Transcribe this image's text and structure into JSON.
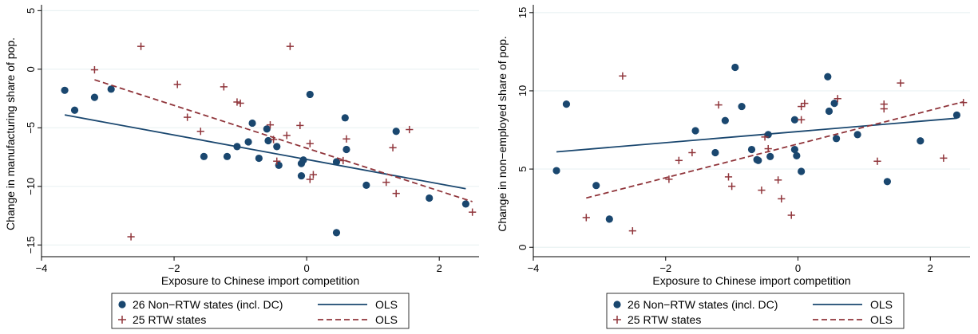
{
  "colors": {
    "non_rtw": "#1a476f",
    "rtw": "#90353b",
    "grid": "#eaf2f3",
    "axis": "#000000"
  },
  "chart_data": [
    {
      "type": "scatter",
      "title": "",
      "xlabel": "Exposure to Chinese import competition",
      "ylabel": "Change in manufacturing share of pop.",
      "xlim": [
        -4.0,
        2.6
      ],
      "ylim": [
        -16.0,
        5.5
      ],
      "xticks": [
        -4,
        -2,
        0,
        2
      ],
      "xtick_labels": [
        "−4",
        "−2",
        "0",
        "2"
      ],
      "yticks": [
        -15,
        -10,
        -5,
        0,
        5
      ],
      "ytick_labels": [
        "−15",
        "−10",
        "−5",
        "0",
        "5"
      ],
      "grid": true,
      "legend_position": "bottom",
      "series": [
        {
          "name": "26 Non−RTW states (incl. DC)",
          "marker": "circle",
          "color": "#1a476f",
          "points": [
            [
              -3.65,
              -1.8
            ],
            [
              -3.5,
              -3.5
            ],
            [
              -3.2,
              -2.4
            ],
            [
              -2.95,
              -1.7
            ],
            [
              -1.55,
              -7.45
            ],
            [
              -1.2,
              -7.45
            ],
            [
              -1.05,
              -6.6
            ],
            [
              -0.88,
              -6.2
            ],
            [
              -0.82,
              -4.6
            ],
            [
              -0.72,
              -7.6
            ],
            [
              -0.6,
              -5.1
            ],
            [
              -0.58,
              -6.1
            ],
            [
              -0.45,
              -6.6
            ],
            [
              -0.42,
              -8.2
            ],
            [
              -0.08,
              -8.05
            ],
            [
              -0.05,
              -7.75
            ],
            [
              -0.08,
              -9.1
            ],
            [
              0.05,
              -2.15
            ],
            [
              0.45,
              -7.9
            ],
            [
              0.45,
              -13.95
            ],
            [
              0.58,
              -4.15
            ],
            [
              0.6,
              -6.85
            ],
            [
              0.9,
              -9.9
            ],
            [
              1.35,
              -5.3
            ],
            [
              1.85,
              -11.0
            ],
            [
              2.4,
              -11.5
            ]
          ]
        },
        {
          "name": "25 RTW states",
          "marker": "plus",
          "color": "#90353b",
          "points": [
            [
              -3.2,
              -0.05
            ],
            [
              -2.5,
              1.95
            ],
            [
              -2.65,
              -14.3
            ],
            [
              -1.95,
              -1.3
            ],
            [
              -1.8,
              -4.1
            ],
            [
              -1.6,
              -5.3
            ],
            [
              -1.25,
              -1.5
            ],
            [
              -1.05,
              -2.8
            ],
            [
              -1.0,
              -2.9
            ],
            [
              -0.55,
              -4.75
            ],
            [
              -0.5,
              -6.0
            ],
            [
              -0.45,
              -7.85
            ],
            [
              -0.3,
              -5.65
            ],
            [
              -0.25,
              1.95
            ],
            [
              -0.1,
              -4.8
            ],
            [
              0.05,
              -6.35
            ],
            [
              0.05,
              -9.4
            ],
            [
              0.1,
              -9.0
            ],
            [
              0.55,
              -7.8
            ],
            [
              0.6,
              -5.95
            ],
            [
              1.2,
              -9.65
            ],
            [
              1.3,
              -6.7
            ],
            [
              1.35,
              -10.6
            ],
            [
              1.55,
              -5.15
            ],
            [
              2.5,
              -12.2
            ]
          ]
        },
        {
          "name": "OLS",
          "type": "line",
          "style": "solid",
          "color": "#1a476f",
          "points": [
            [
              -3.65,
              -3.9
            ],
            [
              2.4,
              -10.2
            ]
          ]
        },
        {
          "name": "OLS",
          "type": "line",
          "style": "dashed",
          "color": "#90353b",
          "points": [
            [
              -3.2,
              -0.9
            ],
            [
              2.5,
              -11.3
            ]
          ]
        }
      ]
    },
    {
      "type": "scatter",
      "title": "",
      "xlabel": "Exposure to Chinese import competition",
      "ylabel": "Change in non−employed share of pop.",
      "xlim": [
        -4.0,
        2.6
      ],
      "ylim": [
        -0.6,
        15.5
      ],
      "xticks": [
        -4,
        -2,
        0,
        2
      ],
      "xtick_labels": [
        "−4",
        "−2",
        "0",
        "2"
      ],
      "yticks": [
        0,
        5,
        10,
        15
      ],
      "ytick_labels": [
        "0",
        "5",
        "10",
        "15"
      ],
      "grid": true,
      "legend_position": "bottom",
      "series": [
        {
          "name": "26 Non−RTW states (incl. DC)",
          "marker": "circle",
          "color": "#1a476f",
          "points": [
            [
              -3.65,
              4.9
            ],
            [
              -3.5,
              9.15
            ],
            [
              -3.05,
              3.95
            ],
            [
              -2.85,
              1.8
            ],
            [
              -1.55,
              7.45
            ],
            [
              -1.25,
              6.05
            ],
            [
              -1.1,
              8.1
            ],
            [
              -0.95,
              11.5
            ],
            [
              -0.85,
              9.0
            ],
            [
              -0.7,
              6.25
            ],
            [
              -0.62,
              5.6
            ],
            [
              -0.6,
              5.55
            ],
            [
              -0.45,
              7.2
            ],
            [
              -0.42,
              5.8
            ],
            [
              -0.05,
              8.15
            ],
            [
              -0.05,
              6.25
            ],
            [
              -0.02,
              5.85
            ],
            [
              0.05,
              4.85
            ],
            [
              0.45,
              10.9
            ],
            [
              0.47,
              8.7
            ],
            [
              0.55,
              9.2
            ],
            [
              0.58,
              6.95
            ],
            [
              0.9,
              7.2
            ],
            [
              1.35,
              4.2
            ],
            [
              1.85,
              6.8
            ],
            [
              2.4,
              8.45
            ]
          ]
        },
        {
          "name": "25 RTW states",
          "marker": "plus",
          "color": "#90353b",
          "points": [
            [
              -3.2,
              1.9
            ],
            [
              -2.65,
              10.95
            ],
            [
              -2.5,
              1.05
            ],
            [
              -1.95,
              4.35
            ],
            [
              -1.8,
              5.55
            ],
            [
              -1.6,
              6.05
            ],
            [
              -1.2,
              9.1
            ],
            [
              -1.05,
              4.5
            ],
            [
              -1.0,
              3.9
            ],
            [
              -0.55,
              3.65
            ],
            [
              -0.5,
              7.05
            ],
            [
              -0.45,
              6.3
            ],
            [
              -0.3,
              4.3
            ],
            [
              -0.25,
              3.1
            ],
            [
              -0.1,
              2.05
            ],
            [
              0.05,
              9.0
            ],
            [
              0.05,
              8.15
            ],
            [
              0.1,
              9.2
            ],
            [
              0.6,
              9.5
            ],
            [
              1.2,
              5.5
            ],
            [
              1.3,
              9.15
            ],
            [
              1.3,
              8.85
            ],
            [
              1.55,
              10.5
            ],
            [
              2.2,
              5.7
            ],
            [
              2.5,
              9.25
            ]
          ]
        },
        {
          "name": "OLS",
          "type": "line",
          "style": "solid",
          "color": "#1a476f",
          "points": [
            [
              -3.65,
              6.1
            ],
            [
              2.4,
              8.25
            ]
          ]
        },
        {
          "name": "OLS",
          "type": "line",
          "style": "dashed",
          "color": "#90353b",
          "points": [
            [
              -3.2,
              3.15
            ],
            [
              2.5,
              9.3
            ]
          ]
        }
      ]
    }
  ],
  "legends": [
    {
      "items": [
        {
          "label": "26 Non−RTW states (incl. DC)",
          "symbol": "circle",
          "color": "#1a476f"
        },
        {
          "label": "25 RTW states",
          "symbol": "plus",
          "color": "#90353b"
        },
        {
          "label": "OLS",
          "symbol": "solid-line",
          "color": "#1a476f"
        },
        {
          "label": "OLS",
          "symbol": "dashed-line",
          "color": "#90353b"
        }
      ]
    },
    {
      "items": [
        {
          "label": "26 Non−RTW states (incl. DC)",
          "symbol": "circle",
          "color": "#1a476f"
        },
        {
          "label": "25 RTW states",
          "symbol": "plus",
          "color": "#90353b"
        },
        {
          "label": "OLS",
          "symbol": "solid-line",
          "color": "#1a476f"
        },
        {
          "label": "OLS",
          "symbol": "dashed-line",
          "color": "#90353b"
        }
      ]
    }
  ]
}
